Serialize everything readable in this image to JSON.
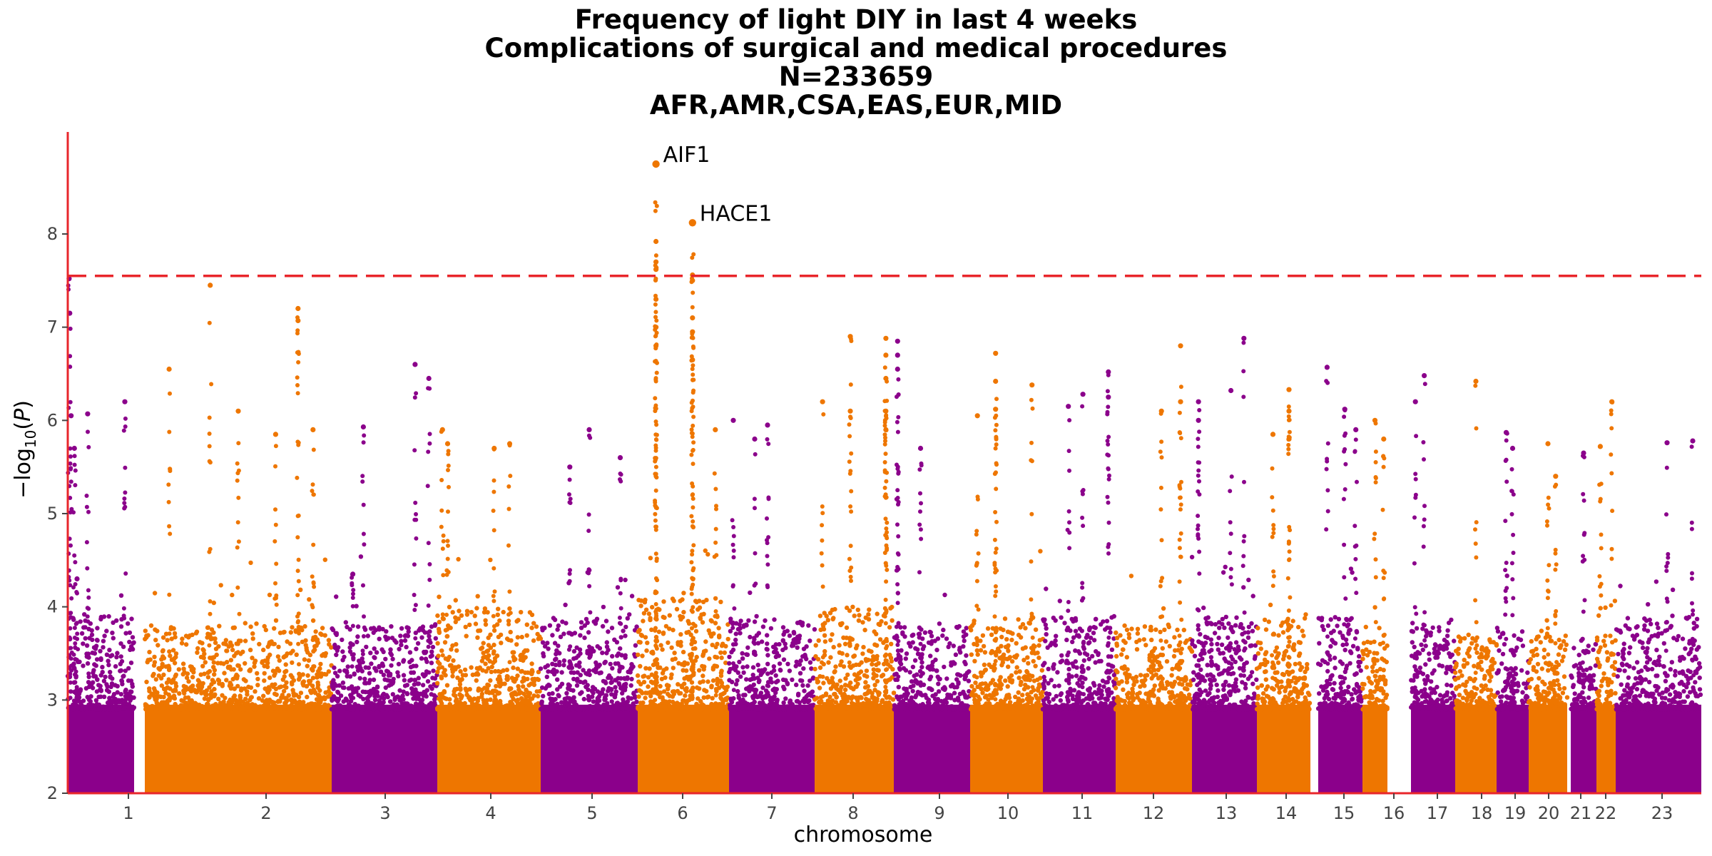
{
  "chart_data": {
    "type": "scatter",
    "subtype": "manhattan",
    "title_lines": [
      "Frequency of light DIY in last 4 weeks",
      "Complications of surgical and medical procedures",
      "N=233659",
      "AFR,AMR,CSA,EAS,EUR,MID"
    ],
    "xlabel": "chromosome",
    "ylabel": "-log10(P)",
    "ylim": [
      2,
      8.9
    ],
    "yticks": [
      2,
      3,
      4,
      5,
      6,
      7,
      8
    ],
    "significance_line": 7.55,
    "colors": {
      "odd": "#8b008b",
      "even": "#ee7600",
      "axis": "#e8262b",
      "threshold": "#e8262b"
    },
    "chromosomes": [
      {
        "label": "1",
        "typical_max": 3.9,
        "peaks": [
          [
            0.02,
            7.52
          ],
          [
            0.03,
            7.15
          ],
          [
            0.05,
            6.05
          ],
          [
            0.1,
            5.7
          ],
          [
            0.3,
            6.07
          ],
          [
            0.86,
            6.2
          ],
          [
            0.14,
            4.3
          ]
        ]
      },
      {
        "label": "2",
        "typical_max": 3.8,
        "peaks": [
          [
            0.35,
            7.45
          ],
          [
            0.13,
            6.55
          ],
          [
            0.5,
            6.1
          ],
          [
            0.82,
            7.2
          ],
          [
            0.82,
            7.07
          ],
          [
            0.9,
            5.9
          ],
          [
            0.7,
            5.85
          ]
        ]
      },
      {
        "label": "3",
        "typical_max": 3.8,
        "peaks": [
          [
            0.79,
            6.6
          ],
          [
            0.92,
            6.45
          ],
          [
            0.3,
            5.93
          ],
          [
            0.2,
            4.35
          ]
        ]
      },
      {
        "label": "4",
        "typical_max": 4.0,
        "peaks": [
          [
            0.05,
            5.9
          ],
          [
            0.1,
            5.75
          ],
          [
            0.7,
            5.75
          ],
          [
            0.55,
            5.7
          ]
        ]
      },
      {
        "label": "5",
        "typical_max": 3.9,
        "peaks": [
          [
            0.5,
            5.9
          ],
          [
            0.82,
            5.6
          ],
          [
            0.3,
            5.5
          ]
        ]
      },
      {
        "label": "6",
        "typical_max": 4.1,
        "peaks": [
          [
            0.2,
            8.75
          ],
          [
            0.2,
            7.92
          ],
          [
            0.2,
            7.7
          ],
          [
            0.2,
            7.62
          ],
          [
            0.2,
            7.3
          ],
          [
            0.2,
            7.0
          ],
          [
            0.2,
            6.8
          ],
          [
            0.6,
            8.12
          ],
          [
            0.6,
            7.56
          ],
          [
            0.6,
            7.5
          ],
          [
            0.6,
            7.1
          ],
          [
            0.6,
            6.95
          ],
          [
            0.6,
            6.65
          ],
          [
            0.85,
            5.9
          ]
        ]
      },
      {
        "label": "7",
        "typical_max": 3.9,
        "peaks": [
          [
            0.05,
            6.0
          ],
          [
            0.45,
            5.95
          ],
          [
            0.3,
            5.8
          ]
        ]
      },
      {
        "label": "8",
        "typical_max": 4.0,
        "peaks": [
          [
            0.1,
            6.2
          ],
          [
            0.45,
            6.9
          ],
          [
            0.9,
            6.88
          ],
          [
            0.9,
            6.7
          ],
          [
            0.9,
            6.45
          ],
          [
            0.9,
            6.1
          ],
          [
            0.9,
            5.9
          ],
          [
            0.45,
            6.1
          ]
        ]
      },
      {
        "label": "9",
        "typical_max": 3.8,
        "peaks": [
          [
            0.05,
            6.85
          ],
          [
            0.05,
            6.7
          ],
          [
            0.05,
            6.55
          ],
          [
            0.35,
            5.7
          ]
        ]
      },
      {
        "label": "10",
        "typical_max": 3.9,
        "peaks": [
          [
            0.35,
            6.72
          ],
          [
            0.35,
            6.42
          ],
          [
            0.35,
            6.12
          ],
          [
            0.1,
            6.05
          ],
          [
            0.85,
            6.38
          ]
        ]
      },
      {
        "label": "11",
        "typical_max": 3.9,
        "peaks": [
          [
            0.55,
            6.28
          ],
          [
            0.35,
            6.15
          ],
          [
            0.9,
            6.52
          ],
          [
            0.9,
            6.25
          ]
        ]
      },
      {
        "label": "12",
        "typical_max": 3.8,
        "peaks": [
          [
            0.85,
            6.8
          ],
          [
            0.6,
            6.1
          ],
          [
            0.85,
            6.2
          ]
        ]
      },
      {
        "label": "13",
        "typical_max": 3.9,
        "peaks": [
          [
            0.1,
            6.2
          ],
          [
            0.1,
            6.0
          ],
          [
            0.8,
            6.88
          ],
          [
            0.6,
            6.32
          ]
        ]
      },
      {
        "label": "14",
        "typical_max": 3.9,
        "peaks": [
          [
            0.6,
            6.33
          ],
          [
            0.6,
            6.1
          ],
          [
            0.6,
            5.8
          ],
          [
            0.3,
            5.85
          ]
        ]
      },
      {
        "label": "15",
        "typical_max": 3.9,
        "peaks": [
          [
            0.2,
            6.57
          ],
          [
            0.6,
            6.12
          ],
          [
            0.85,
            5.9
          ]
        ]
      },
      {
        "label": "16",
        "typical_max": 3.8,
        "peaks": [
          [
            0.5,
            6.0
          ],
          [
            0.85,
            5.8
          ]
        ]
      },
      {
        "label": "17",
        "typical_max": 3.9,
        "peaks": [
          [
            0.3,
            6.48
          ],
          [
            0.1,
            6.2
          ]
        ]
      },
      {
        "label": "18",
        "typical_max": 3.7,
        "peaks": [
          [
            0.5,
            6.42
          ]
        ]
      },
      {
        "label": "19",
        "typical_max": 3.8,
        "peaks": [
          [
            0.3,
            5.87
          ],
          [
            0.5,
            5.7
          ]
        ]
      },
      {
        "label": "20",
        "typical_max": 3.7,
        "peaks": [
          [
            0.5,
            5.75
          ],
          [
            0.7,
            5.4
          ]
        ]
      },
      {
        "label": "21",
        "typical_max": 3.6,
        "peaks": [
          [
            0.5,
            5.65
          ]
        ]
      },
      {
        "label": "22",
        "typical_max": 3.7,
        "peaks": [
          [
            0.8,
            6.2
          ],
          [
            0.2,
            5.72
          ]
        ]
      },
      {
        "label": "23",
        "typical_max": 3.9,
        "peaks": [
          [
            0.6,
            5.76
          ],
          [
            0.9,
            5.78
          ]
        ]
      }
    ],
    "annotations": [
      {
        "gene": "AIF1",
        "chrom": "6",
        "y": 8.75
      },
      {
        "gene": "HACE1",
        "chrom": "6",
        "y": 8.12
      }
    ]
  }
}
